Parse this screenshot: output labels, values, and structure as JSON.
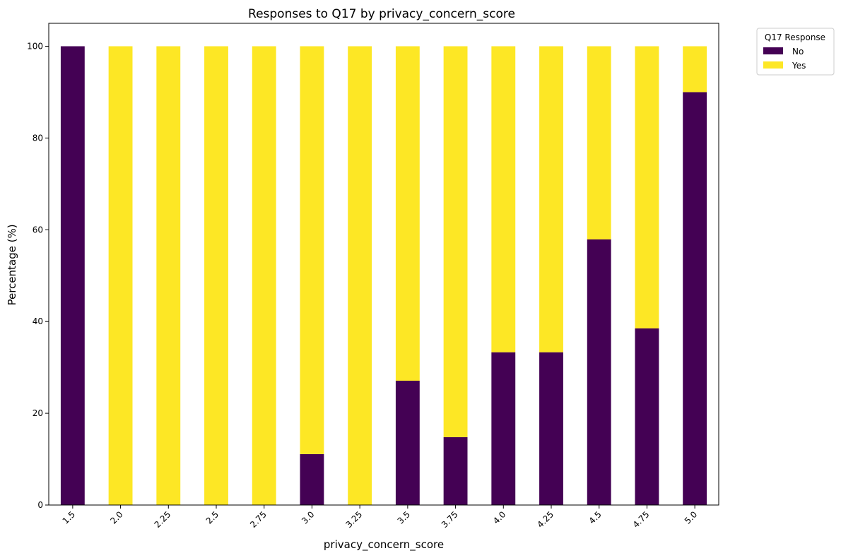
{
  "chart_data": {
    "type": "bar",
    "stacked": true,
    "title": "Responses to Q17 by privacy_concern_score",
    "xlabel": "privacy_concern_score",
    "ylabel": "Percentage (%)",
    "categories": [
      "1.5",
      "2.0",
      "2.25",
      "2.5",
      "2.75",
      "3.0",
      "3.25",
      "3.5",
      "3.75",
      "4.0",
      "4.25",
      "4.5",
      "4.75",
      "5.0"
    ],
    "series": [
      {
        "name": "No",
        "color": "#440154",
        "values": [
          100,
          0,
          0,
          0,
          0,
          11.1,
          0,
          27.1,
          14.8,
          33.3,
          33.3,
          57.9,
          38.5,
          90.0
        ]
      },
      {
        "name": "Yes",
        "color": "#fde725",
        "values": [
          0,
          100,
          100,
          100,
          100,
          88.9,
          100,
          72.9,
          85.2,
          66.7,
          66.7,
          42.1,
          61.5,
          10.0
        ]
      }
    ],
    "ylim": [
      0,
      105
    ],
    "yticks": [
      "0",
      "20",
      "40",
      "60",
      "80",
      "100"
    ],
    "legend": {
      "title": "Q17 Response",
      "placement": "outside upper right"
    },
    "grid": false
  }
}
